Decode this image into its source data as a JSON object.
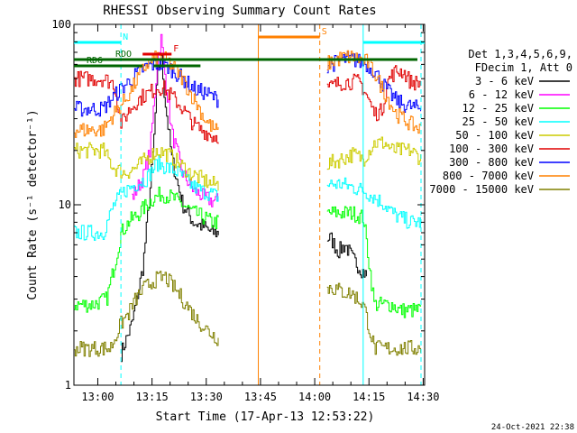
{
  "chart_data": {
    "type": "line",
    "title": "RHESSI Observing Summary Count Rates",
    "xlabel": "Start Time (17-Apr-13 12:53:22)",
    "ylabel": "Count Rate (s⁻¹ detector⁻¹)",
    "yscale": "log",
    "ylim": [
      1,
      100
    ],
    "xlim_minutes_after_start": [
      0,
      97
    ],
    "x_ticks": [
      {
        "label": "13:00",
        "minute": 6.6
      },
      {
        "label": "13:15",
        "minute": 21.6
      },
      {
        "label": "13:30",
        "minute": 36.6
      },
      {
        "label": "13:45",
        "minute": 51.6
      },
      {
        "label": "14:00",
        "minute": 66.6
      },
      {
        "label": "14:15",
        "minute": 81.6
      },
      {
        "label": "14:30",
        "minute": 96.6
      }
    ],
    "y_ticks": [
      "1",
      "10",
      "100"
    ],
    "timestamp": "24-Oct-2021 22:38",
    "legend": {
      "placement": "right",
      "header_line1": "Det 1,3,4,5,6,9,",
      "header_line2": "FDecim 1, Att 0",
      "entries": [
        {
          "label": "3 - 6 keV",
          "color": "#000000"
        },
        {
          "label": "6 - 12 keV",
          "color": "#ff00ff"
        },
        {
          "label": "12 - 25 keV",
          "color": "#00ff00"
        },
        {
          "label": "25 - 50 keV",
          "color": "#00ffff"
        },
        {
          "label": "50 - 100 keV",
          "color": "#cccc00"
        },
        {
          "label": "100 - 300 keV",
          "color": "#e00000"
        },
        {
          "label": "300 - 800 keV",
          "color": "#0000ff"
        },
        {
          "label": "800 - 7000 keV",
          "color": "#ff8000"
        },
        {
          "label": "7000 - 15000 keV",
          "color": "#808000"
        }
      ]
    },
    "flags": [
      {
        "label": "N",
        "color": "#00ffff",
        "segments": [
          [
            0,
            13
          ],
          [
            80,
            97
          ]
        ]
      },
      {
        "label": "F",
        "color": "#e00000",
        "segments": [
          [
            19,
            27
          ]
        ]
      },
      {
        "label": "S",
        "color": "#ff8000",
        "segments": [
          [
            51,
            68
          ]
        ]
      },
      {
        "label": "RDO",
        "color": "#006600",
        "segments": [
          [
            0,
            95
          ]
        ]
      },
      {
        "label": "RD6",
        "color": "#006600",
        "segments": [
          [
            0,
            19
          ],
          [
            22,
            35
          ]
        ]
      }
    ],
    "orbit_markers": [
      {
        "color": "#ff8000",
        "minute": 51,
        "style": "solid"
      },
      {
        "color": "#ff8000",
        "minute": 68,
        "style": "dashed"
      },
      {
        "color": "#00ffff",
        "minute": 13,
        "style": "dashed"
      },
      {
        "color": "#00ffff",
        "minute": 80,
        "style": "solid"
      },
      {
        "color": "#00ffff",
        "minute": 96,
        "style": "dashed"
      }
    ],
    "gaps_minutes": [
      [
        40,
        70
      ]
    ],
    "series": [
      {
        "name": "3 - 6 keV",
        "color": "#000000",
        "x": [
          13,
          16,
          19,
          21,
          22,
          23,
          24,
          25,
          27,
          30,
          33,
          36,
          38,
          40,
          71,
          73,
          75,
          77,
          79,
          81
        ],
        "y": [
          1.5,
          2.2,
          4.5,
          12,
          22,
          50,
          70,
          40,
          18,
          10,
          8,
          7.5,
          7,
          7,
          6.5,
          5.5,
          6,
          5,
          4.5,
          4
        ]
      },
      {
        "name": "6 - 12 keV",
        "color": "#ff00ff",
        "x": [
          16,
          19,
          21,
          22,
          23,
          24,
          25,
          27,
          30,
          33,
          36,
          38,
          40
        ],
        "y": [
          11,
          14,
          20,
          35,
          60,
          85,
          55,
          25,
          15,
          12,
          11,
          10.5,
          10.5
        ]
      },
      {
        "name": "12 - 25 keV",
        "color": "#00ff00",
        "x": [
          0,
          5,
          9,
          11,
          13,
          15,
          18,
          21,
          24,
          27,
          30,
          33,
          36,
          38,
          40,
          71,
          74,
          77,
          80,
          83,
          86,
          88,
          90,
          93,
          96
        ],
        "y": [
          2.8,
          2.8,
          3.0,
          4.5,
          7,
          8,
          9,
          10.5,
          11.5,
          11,
          10,
          9,
          8.5,
          8,
          8,
          9,
          9,
          9,
          8.5,
          2.8,
          2.8,
          2.8,
          2.6,
          2.6,
          2.6
        ]
      },
      {
        "name": "25 - 50 keV",
        "color": "#00ffff",
        "x": [
          0,
          4,
          8,
          11,
          14,
          17,
          20,
          23,
          26,
          29,
          32,
          35,
          38,
          40,
          71,
          74,
          77,
          80,
          83,
          86,
          88,
          90,
          93,
          96
        ],
        "y": [
          7,
          7,
          7,
          10,
          12,
          13,
          14,
          17,
          16,
          15,
          13,
          12,
          11.5,
          11,
          13,
          13,
          12.5,
          12,
          11,
          10,
          9,
          8.5,
          8,
          8
        ]
      },
      {
        "name": "50 - 100 keV",
        "color": "#cccc00",
        "x": [
          0,
          4,
          8,
          11,
          14,
          17,
          20,
          23,
          26,
          29,
          32,
          35,
          38,
          40,
          71,
          74,
          77,
          80,
          83,
          86,
          88,
          90,
          93,
          96
        ],
        "y": [
          20,
          20,
          20,
          16,
          15,
          16,
          18,
          20,
          19,
          17,
          15,
          14,
          13,
          13,
          17,
          18,
          19,
          18,
          22,
          22,
          20,
          20,
          20,
          18
        ]
      },
      {
        "name": "100 - 300 keV",
        "color": "#e00000",
        "x": [
          0,
          4,
          8,
          11,
          13,
          15,
          17,
          19,
          21,
          23,
          25,
          27,
          29,
          31,
          33,
          35,
          37,
          38,
          40,
          71,
          73,
          75,
          77,
          79,
          81,
          83,
          85,
          87,
          89,
          91,
          93,
          96
        ],
        "y": [
          50,
          50,
          50,
          47,
          28,
          33,
          37,
          40,
          42,
          45,
          44,
          40,
          36,
          32,
          28,
          26,
          25,
          24,
          24,
          45,
          47,
          48,
          48,
          48,
          40,
          32,
          33,
          50,
          55,
          55,
          48,
          47
        ]
      },
      {
        "name": "300 - 800 keV",
        "color": "#0000ff",
        "x": [
          0,
          4,
          8,
          10,
          12,
          14,
          16,
          18,
          20,
          22,
          24,
          26,
          28,
          30,
          32,
          34,
          36,
          38,
          40,
          71,
          73,
          75,
          77,
          79,
          81,
          83,
          85,
          87,
          89,
          91,
          93,
          96
        ],
        "y": [
          34,
          34,
          34,
          38,
          42,
          46,
          50,
          55,
          58,
          60,
          60,
          58,
          54,
          50,
          46,
          43,
          42,
          40,
          38,
          60,
          62,
          64,
          64,
          62,
          60,
          55,
          48,
          42,
          38,
          36,
          35,
          34
        ]
      },
      {
        "name": "800 - 7000 keV",
        "color": "#ff8000",
        "x": [
          0,
          4,
          8,
          10,
          12,
          14,
          16,
          18,
          20,
          22,
          24,
          26,
          28,
          30,
          32,
          34,
          36,
          38,
          40,
          71,
          73,
          75,
          77,
          79,
          81,
          83,
          85,
          87,
          89,
          91,
          93,
          96
        ],
        "y": [
          26,
          26,
          26,
          30,
          34,
          38,
          44,
          52,
          60,
          64,
          66,
          62,
          56,
          50,
          42,
          36,
          30,
          27,
          25,
          62,
          64,
          66,
          66,
          64,
          62,
          54,
          45,
          38,
          32,
          30,
          28,
          26
        ]
      },
      {
        "name": "7000 - 15000 keV",
        "color": "#808000",
        "x": [
          0,
          5,
          10,
          13,
          15,
          17,
          19,
          22,
          25,
          28,
          31,
          34,
          37,
          40,
          71,
          74,
          77,
          80,
          83,
          86,
          90,
          93,
          96
        ],
        "y": [
          1.6,
          1.6,
          1.6,
          2.2,
          2.5,
          3.0,
          3.4,
          3.8,
          4.0,
          3.4,
          2.8,
          2.3,
          2.0,
          1.8,
          3.5,
          3.3,
          3.2,
          2.8,
          1.6,
          1.6,
          1.6,
          1.6,
          1.6
        ]
      }
    ]
  }
}
